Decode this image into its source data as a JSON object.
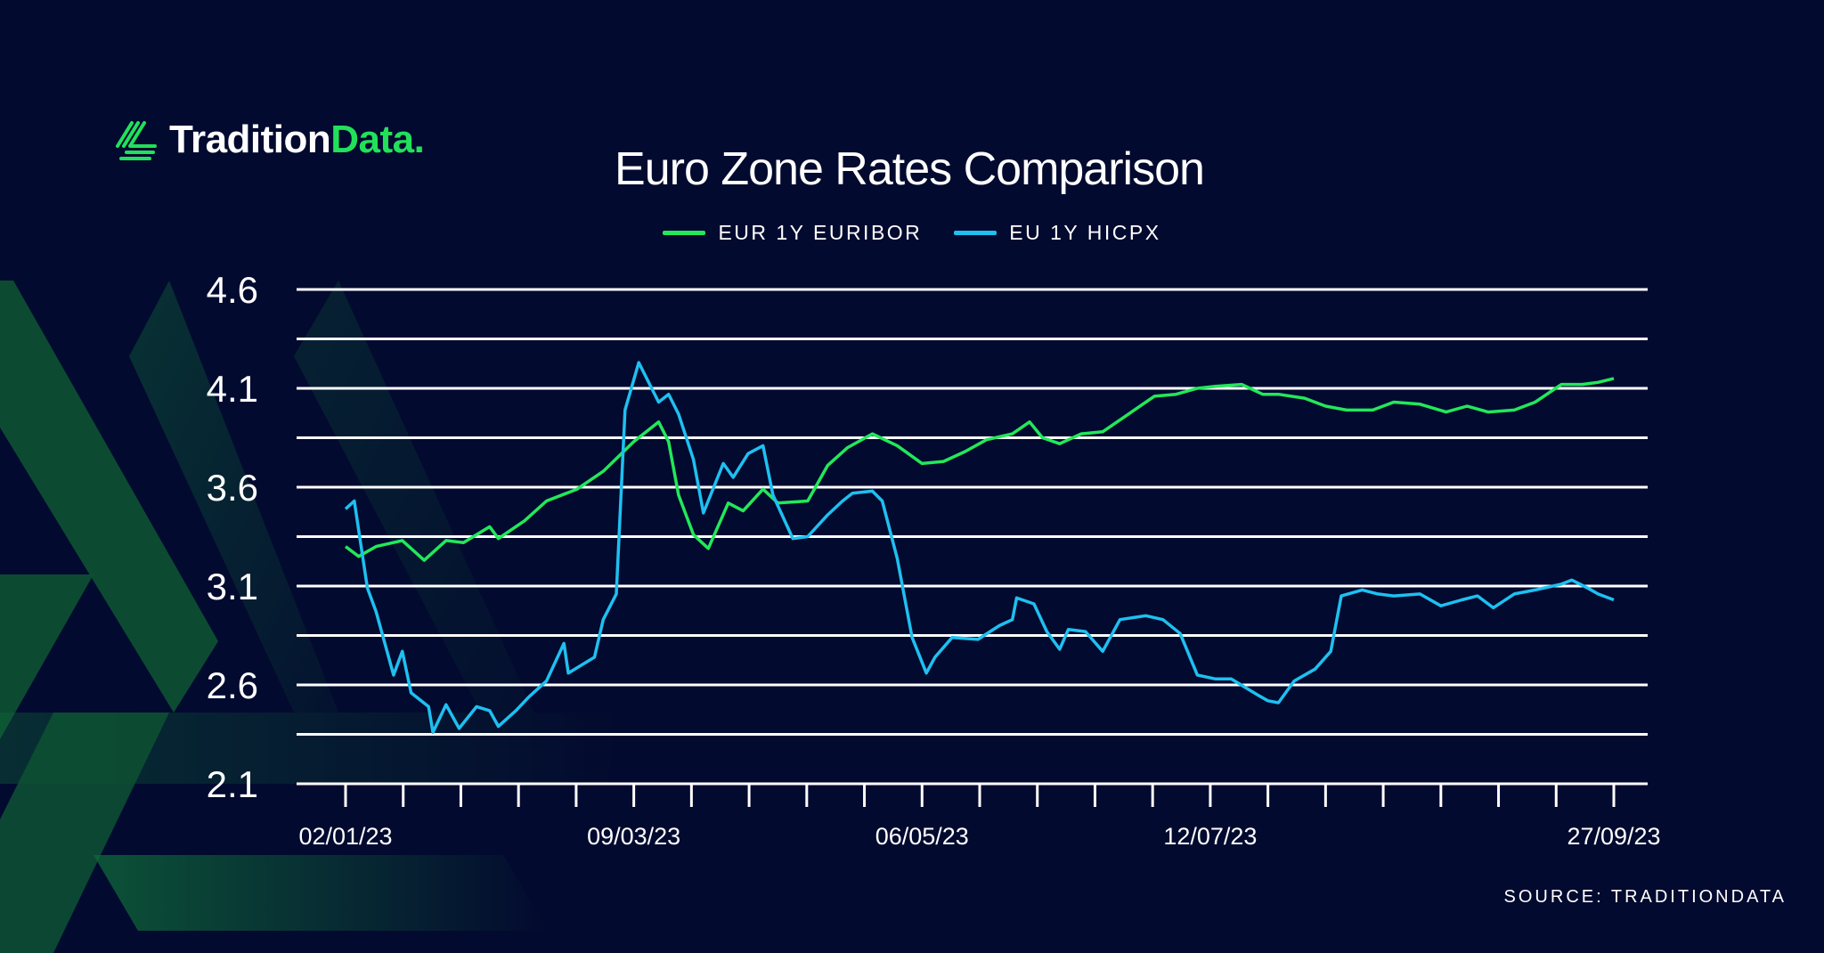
{
  "brand": {
    "logo_primary": "Tradition",
    "logo_accent": "Data.",
    "accent_color": "#22e05a"
  },
  "source": "SOURCE: TRADITIONDATA",
  "chart_data": {
    "type": "line",
    "title": "Euro Zone Rates Comparison",
    "xlabel": "",
    "ylabel": "",
    "ylim": [
      2.1,
      4.6
    ],
    "y_ticks": [
      "4.6",
      "4.1",
      "3.6",
      "3.1",
      "2.6",
      "2.1"
    ],
    "y_gridlines": [
      2.1,
      2.35,
      2.6,
      2.85,
      3.1,
      3.35,
      3.6,
      3.85,
      4.1,
      4.35,
      4.6
    ],
    "x_tick_labels": [
      "02/01/23",
      "09/03/23",
      "06/05/23",
      "12/07/23",
      "27/09/23"
    ],
    "x_tick_count": 23,
    "grid": true,
    "legend_position": "top-center",
    "background_color": "#030a2f",
    "series": [
      {
        "name": "EUR 1Y EURIBOR",
        "color": "#22e85a",
        "points": [
          [
            "02/01/23",
            3.3
          ],
          [
            "05/01/23",
            3.25
          ],
          [
            "09/01/23",
            3.3
          ],
          [
            "15/01/23",
            3.33
          ],
          [
            "20/01/23",
            3.23
          ],
          [
            "25/01/23",
            3.33
          ],
          [
            "29/01/23",
            3.32
          ],
          [
            "04/02/23",
            3.4
          ],
          [
            "06/02/23",
            3.34
          ],
          [
            "12/02/23",
            3.43
          ],
          [
            "17/02/23",
            3.53
          ],
          [
            "24/02/23",
            3.59
          ],
          [
            "02/03/23",
            3.68
          ],
          [
            "09/03/23",
            3.83
          ],
          [
            "14/03/23",
            3.93
          ],
          [
            "16/03/23",
            3.83
          ],
          [
            "18/03/23",
            3.56
          ],
          [
            "21/03/23",
            3.36
          ],
          [
            "24/03/23",
            3.29
          ],
          [
            "28/03/23",
            3.52
          ],
          [
            "31/03/23",
            3.48
          ],
          [
            "04/04/23",
            3.59
          ],
          [
            "07/04/23",
            3.52
          ],
          [
            "13/04/23",
            3.53
          ],
          [
            "17/04/23",
            3.71
          ],
          [
            "21/04/23",
            3.8
          ],
          [
            "26/04/23",
            3.87
          ],
          [
            "01/05/23",
            3.81
          ],
          [
            "06/05/23",
            3.72
          ],
          [
            "11/05/23",
            3.73
          ],
          [
            "16/05/23",
            3.78
          ],
          [
            "21/05/23",
            3.84
          ],
          [
            "27/05/23",
            3.87
          ],
          [
            "31/05/23",
            3.93
          ],
          [
            "03/06/23",
            3.85
          ],
          [
            "07/06/23",
            3.82
          ],
          [
            "12/06/23",
            3.87
          ],
          [
            "17/06/23",
            3.88
          ],
          [
            "23/06/23",
            3.97
          ],
          [
            "29/06/23",
            4.06
          ],
          [
            "04/07/23",
            4.07
          ],
          [
            "09/07/23",
            4.1
          ],
          [
            "13/07/23",
            4.11
          ],
          [
            "18/07/23",
            4.12
          ],
          [
            "22/07/23",
            4.07
          ],
          [
            "25/07/23",
            4.07
          ],
          [
            "30/07/23",
            4.05
          ],
          [
            "03/08/23",
            4.01
          ],
          [
            "07/08/23",
            3.99
          ],
          [
            "12/08/23",
            3.99
          ],
          [
            "16/08/23",
            4.03
          ],
          [
            "21/08/23",
            4.02
          ],
          [
            "26/08/23",
            3.98
          ],
          [
            "30/08/23",
            4.01
          ],
          [
            "03/09/23",
            3.98
          ],
          [
            "08/09/23",
            3.99
          ],
          [
            "12/09/23",
            4.03
          ],
          [
            "17/09/23",
            4.12
          ],
          [
            "21/09/23",
            4.12
          ],
          [
            "24/09/23",
            4.13
          ],
          [
            "27/09/23",
            4.15
          ]
        ]
      },
      {
        "name": "EU 1Y HICPX",
        "color": "#1ec0f0",
        "points": [
          [
            "02/01/23",
            3.49
          ],
          [
            "04/01/23",
            3.53
          ],
          [
            "07/01/23",
            3.09
          ],
          [
            "09/01/23",
            2.97
          ],
          [
            "13/01/23",
            2.65
          ],
          [
            "15/01/23",
            2.77
          ],
          [
            "17/01/23",
            2.56
          ],
          [
            "21/01/23",
            2.49
          ],
          [
            "22/01/23",
            2.36
          ],
          [
            "25/01/23",
            2.5
          ],
          [
            "28/01/23",
            2.38
          ],
          [
            "01/02/23",
            2.49
          ],
          [
            "04/02/23",
            2.47
          ],
          [
            "06/02/23",
            2.39
          ],
          [
            "10/02/23",
            2.47
          ],
          [
            "13/02/23",
            2.54
          ],
          [
            "17/02/23",
            2.62
          ],
          [
            "21/02/23",
            2.81
          ],
          [
            "22/02/23",
            2.66
          ],
          [
            "28/02/23",
            2.74
          ],
          [
            "02/03/23",
            2.93
          ],
          [
            "05/03/23",
            3.06
          ],
          [
            "07/03/23",
            3.99
          ],
          [
            "10/03/23",
            4.23
          ],
          [
            "14/03/23",
            4.03
          ],
          [
            "16/03/23",
            4.07
          ],
          [
            "18/03/23",
            3.97
          ],
          [
            "21/03/23",
            3.74
          ],
          [
            "23/03/23",
            3.47
          ],
          [
            "27/03/23",
            3.72
          ],
          [
            "29/03/23",
            3.65
          ],
          [
            "01/04/23",
            3.77
          ],
          [
            "04/04/23",
            3.81
          ],
          [
            "06/04/23",
            3.56
          ],
          [
            "10/04/23",
            3.34
          ],
          [
            "13/04/23",
            3.35
          ],
          [
            "17/04/23",
            3.46
          ],
          [
            "20/04/23",
            3.53
          ],
          [
            "22/04/23",
            3.57
          ],
          [
            "26/04/23",
            3.58
          ],
          [
            "28/04/23",
            3.53
          ],
          [
            "01/05/23",
            3.24
          ],
          [
            "04/05/23",
            2.84
          ],
          [
            "07/05/23",
            2.66
          ],
          [
            "09/05/23",
            2.74
          ],
          [
            "13/05/23",
            2.84
          ],
          [
            "19/05/23",
            2.83
          ],
          [
            "24/05/23",
            2.9
          ],
          [
            "27/05/23",
            2.93
          ],
          [
            "28/05/23",
            3.04
          ],
          [
            "01/06/23",
            3.01
          ],
          [
            "04/06/23",
            2.87
          ],
          [
            "07/06/23",
            2.78
          ],
          [
            "09/06/23",
            2.88
          ],
          [
            "13/06/23",
            2.87
          ],
          [
            "17/06/23",
            2.77
          ],
          [
            "21/06/23",
            2.93
          ],
          [
            "27/06/23",
            2.95
          ],
          [
            "01/07/23",
            2.93
          ],
          [
            "05/07/23",
            2.86
          ],
          [
            "09/07/23",
            2.65
          ],
          [
            "13/07/23",
            2.63
          ],
          [
            "16/07/23",
            2.63
          ],
          [
            "21/07/23",
            2.55
          ],
          [
            "23/07/23",
            2.52
          ],
          [
            "25/07/23",
            2.51
          ],
          [
            "28/07/23",
            2.62
          ],
          [
            "01/08/23",
            2.68
          ],
          [
            "04/08/23",
            2.77
          ],
          [
            "06/08/23",
            3.05
          ],
          [
            "10/08/23",
            3.08
          ],
          [
            "13/08/23",
            3.06
          ],
          [
            "16/08/23",
            3.05
          ],
          [
            "21/08/23",
            3.06
          ],
          [
            "25/08/23",
            3.0
          ],
          [
            "29/08/23",
            3.03
          ],
          [
            "01/09/23",
            3.05
          ],
          [
            "04/09/23",
            2.99
          ],
          [
            "08/09/23",
            3.06
          ],
          [
            "12/09/23",
            3.08
          ],
          [
            "17/09/23",
            3.11
          ],
          [
            "19/09/23",
            3.13
          ],
          [
            "22/09/23",
            3.09
          ],
          [
            "24/09/23",
            3.06
          ],
          [
            "27/09/23",
            3.03
          ]
        ]
      }
    ]
  }
}
